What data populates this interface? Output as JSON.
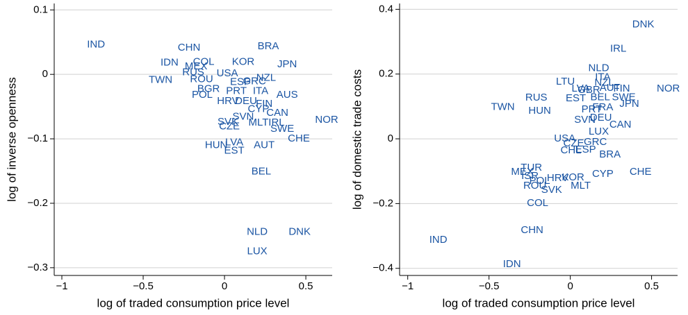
{
  "chart_data": [
    {
      "type": "scatter",
      "color": "#1b55a3",
      "grid": true,
      "xlabel": "log of traded consumption price level",
      "ylabel": "log of inverse openness",
      "xlim": [
        -1.047,
        0.662
      ],
      "ylim": [
        -0.312,
        0.11
      ],
      "xticks": [
        {
          "value": -1,
          "label": "−1"
        },
        {
          "value": -0.5,
          "label": "−0.5"
        },
        0,
        0.5
      ],
      "yticks": [
        0.1,
        0,
        {
          "value": -0.1,
          "label": "−0.1"
        },
        {
          "value": -0.2,
          "label": "−0.2"
        },
        {
          "value": -0.3,
          "label": "−0.3"
        }
      ],
      "labels": [
        "IND",
        "CHN",
        "BRA",
        "IDN",
        "COL",
        "KOR",
        "MEX",
        "JPN",
        "RUS",
        "USA",
        "ITA",
        "TWN",
        "ROU",
        "ESP",
        "GRC",
        "NZL",
        "BGR",
        "PRT",
        "AUS",
        "POL",
        "HRV",
        "DEU",
        "FIN",
        "CYP",
        "CAN",
        "NOR",
        "SVN",
        "SWE",
        "CZE",
        "SVK",
        "MLT",
        "IRL",
        "CHE",
        "HUN",
        "LVA",
        "AUT",
        "EST",
        "BEL",
        "NLD",
        "DNK",
        "LUX"
      ],
      "x": [
        -0.79,
        -0.218,
        0.269,
        -0.338,
        -0.128,
        0.115,
        -0.175,
        0.385,
        -0.192,
        0.017,
        0.222,
        -0.393,
        -0.141,
        0.098,
        0.184,
        0.256,
        -0.098,
        0.073,
        0.385,
        -0.137,
        0.021,
        0.132,
        0.244,
        0.209,
        0.325,
        0.628,
        0.115,
        0.355,
        0.03,
        0.021,
        0.209,
        0.32,
        0.457,
        -0.051,
        0.06,
        0.244,
        0.06,
        0.226,
        0.201,
        0.462,
        0.201
      ],
      "y": [
        0.046,
        0.041,
        0.043,
        0.018,
        0.019,
        0.019,
        0.012,
        0.015,
        0.003,
        0.001,
        -0.026,
        -0.009,
        -0.008,
        -0.012,
        -0.011,
        -0.006,
        -0.023,
        -0.026,
        -0.032,
        -0.032,
        -0.042,
        -0.042,
        -0.046,
        -0.054,
        -0.06,
        -0.071,
        -0.066,
        -0.085,
        -0.081,
        -0.074,
        -0.075,
        -0.075,
        -0.1,
        -0.11,
        -0.106,
        -0.11,
        -0.119,
        -0.151,
        -0.245,
        -0.245,
        -0.275
      ]
    },
    {
      "type": "scatter",
      "color": "#1b55a3",
      "grid": true,
      "xlabel": "log of traded consumption price level",
      "ylabel": "log of domestic trade costs",
      "xlim": [
        -1.05,
        0.66
      ],
      "ylim": [
        -0.422,
        0.418
      ],
      "xticks": [
        {
          "value": -1,
          "label": "−1"
        },
        {
          "value": -0.5,
          "label": "−0.5"
        },
        0,
        0.5
      ],
      "yticks": [
        0.4,
        0.2,
        0,
        {
          "value": -0.2,
          "label": "−0.2"
        },
        {
          "value": -0.4,
          "label": "−0.4"
        }
      ],
      "labels": [
        "DNK",
        "IRL",
        "NLD",
        "ITA",
        "NZL",
        "LTU",
        "LVA",
        "AUT",
        "GBR",
        "FIN",
        "NOR",
        "TWN",
        "RUS",
        "EST",
        "BEL",
        "SWE",
        "HUN",
        "PRT",
        "FRA",
        "JPN",
        "SVN",
        "DEU",
        "CAN",
        "LUX",
        "USA",
        "CZE",
        "GRC",
        "CHL",
        "ESP",
        "BRA",
        "TUR",
        "MEX",
        "ISR",
        "HRV",
        "POL",
        "CYP",
        "CHE",
        "KOR",
        "MLT",
        "ROU",
        "SVK",
        "COL",
        "CHN",
        "IND",
        "IDN"
      ],
      "x": [
        0.449,
        0.295,
        0.175,
        0.2,
        0.209,
        -0.03,
        0.064,
        0.244,
        0.115,
        0.316,
        0.603,
        -0.415,
        -0.209,
        0.034,
        0.184,
        0.329,
        -0.188,
        0.132,
        0.2,
        0.363,
        0.09,
        0.188,
        0.308,
        0.175,
        -0.034,
        0.021,
        0.154,
        0.004,
        0.094,
        0.244,
        -0.239,
        -0.295,
        -0.248,
        -0.077,
        -0.188,
        0.2,
        0.432,
        0.017,
        0.064,
        -0.218,
        -0.115,
        -0.201,
        -0.235,
        -0.812,
        -0.359
      ],
      "y": [
        0.353,
        0.278,
        0.218,
        0.19,
        0.173,
        0.176,
        0.154,
        0.156,
        0.15,
        0.154,
        0.154,
        0.098,
        0.126,
        0.124,
        0.128,
        0.128,
        0.086,
        0.09,
        0.096,
        0.107,
        0.058,
        0.064,
        0.043,
        0.021,
        0,
        -0.015,
        -0.011,
        -0.036,
        -0.034,
        -0.049,
        -0.09,
        -0.103,
        -0.116,
        -0.122,
        -0.131,
        -0.109,
        -0.103,
        -0.12,
        -0.146,
        -0.146,
        -0.158,
        -0.199,
        -0.283,
        -0.313,
        -0.388
      ]
    }
  ]
}
